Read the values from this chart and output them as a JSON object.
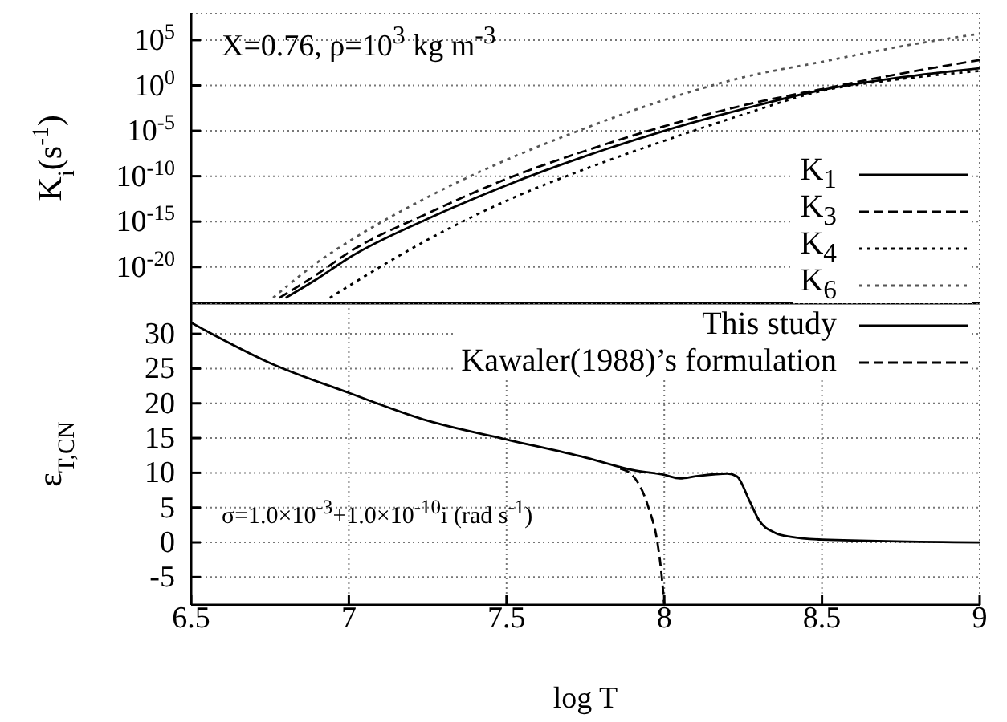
{
  "chart_data": [
    {
      "type": "line",
      "ylabel": "K$_{i}$(s$^{-1}$)",
      "annotations": [
        "X=0.76, ρ=10$^{3}$ kg m$^{-3}$"
      ],
      "log": "y",
      "grid": true,
      "legend": "bottom right",
      "tick_labels": "y",
      "xlim": [
        6.5,
        9
      ],
      "xticks": [
        6.5,
        7,
        7.5,
        8,
        8.5,
        9
      ],
      "ylim": [
        1e-24,
        100000000.0
      ],
      "yticks": [
        {
          "value": 1e-20,
          "label": "10$^{-20}$"
        },
        {
          "value": 1e-15,
          "label": "10$^{-15}$"
        },
        {
          "value": 1e-10,
          "label": "10$^{-10}$"
        },
        {
          "value": 1e-05,
          "label": "10$^{-5}$"
        },
        {
          "value": 1,
          "label": "10$^{0}$"
        },
        {
          "value": 100000.0,
          "label": "10$^{5}$"
        }
      ],
      "series": [
        {
          "name": "K$_{1}$",
          "color": "#000000",
          "line_style": "solid",
          "x": [
            6.8,
            6.9,
            7,
            7.25,
            7.5,
            7.75,
            8,
            8.25,
            8.5,
            8.75,
            9
          ],
          "values": [
            4e-24,
            5e-22,
            1e-19,
            2e-15,
            1e-11,
            1.6e-08,
            1e-05,
            0.0025,
            0.32,
            7.9,
            79
          ]
        },
        {
          "name": "K$_{3}$",
          "color": "#000000",
          "line_style": "dashed",
          "x": [
            6.78,
            6.9,
            7,
            7.25,
            7.5,
            7.75,
            8,
            8.25,
            8.5,
            8.75,
            9
          ],
          "values": [
            4e-24,
            1.6e-21,
            4e-19,
            8e-15,
            5e-11,
            6.3e-08,
            3.2e-05,
            0.0063,
            0.4,
            20,
            630
          ]
        },
        {
          "name": "K$_{4}$",
          "color": "#000000",
          "line_style": "dotted",
          "x": [
            6.94,
            7,
            7.25,
            7.5,
            7.75,
            8,
            8.25,
            8.5,
            8.75,
            9
          ],
          "values": [
            4e-24,
            8e-23,
            1e-17,
            2e-13,
            6.3e-10,
            8e-07,
            0.00063,
            0.25,
            5,
            40
          ]
        },
        {
          "name": "K$_{6}$",
          "color": "#555555",
          "line_style": "dotted",
          "x": [
            6.76,
            6.9,
            7,
            7.25,
            7.5,
            7.75,
            8,
            8.25,
            8.5,
            8.75,
            9
          ],
          "values": [
            4e-24,
            3.2e-20,
            6.3e-18,
            5e-13,
            6.3e-09,
            2e-05,
            0.025,
            7.9,
            400,
            20000.0,
            500000.0
          ]
        }
      ]
    },
    {
      "type": "line",
      "xlabel": "log T",
      "ylabel": "ε$_{T,CN}$",
      "annotations": [
        "σ=1.0×10$^{-3}$+1.0×10$^{-10}$i (rad s$^{-1}$)"
      ],
      "grid": true,
      "legend": "top right",
      "xlim": [
        6.5,
        9
      ],
      "xticks": [
        6.5,
        7,
        7.5,
        8,
        8.5,
        9
      ],
      "ylim": [
        -9,
        34.4
      ],
      "yticks": [
        -5,
        0,
        5,
        10,
        15,
        20,
        25,
        30
      ],
      "series": [
        {
          "name": "This study",
          "color": "#000000",
          "line_style": "solid",
          "x": [
            6.5,
            6.75,
            7,
            7.25,
            7.5,
            7.75,
            7.9,
            8,
            8.05,
            8.1,
            8.2,
            8.23,
            8.27,
            8.3,
            8.35,
            8.4,
            8.5,
            9
          ],
          "values": [
            31.6,
            25.8,
            21.5,
            17.5,
            14.8,
            12.2,
            10.4,
            9.7,
            9.2,
            9.5,
            9.9,
            9.5,
            6,
            3.2,
            1.4,
            0.8,
            0.4,
            0
          ]
        },
        {
          "name": "Kawaler(1988)’s formulation",
          "color": "#000000",
          "line_style": "dashed",
          "x": [
            7.86,
            7.9,
            7.95,
            7.98,
            7.99,
            8
          ],
          "values": [
            10.6,
            9.6,
            5,
            -0.5,
            -4,
            -9
          ]
        }
      ]
    }
  ]
}
